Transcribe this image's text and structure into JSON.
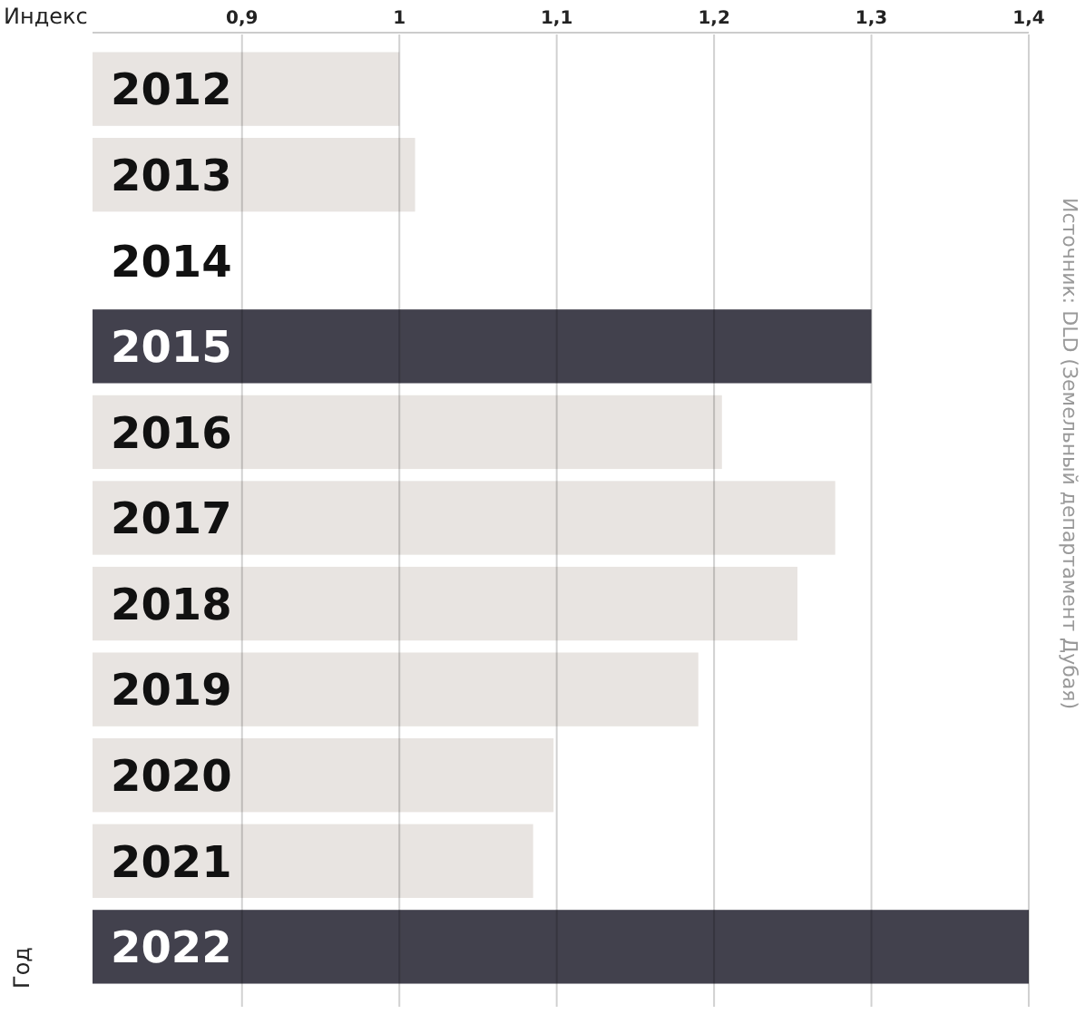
{
  "chart_data": {
    "type": "bar",
    "orientation": "horizontal",
    "xlabel": "Индекс",
    "ylabel": "Год",
    "categories": [
      "2012",
      "2013",
      "2014",
      "2015",
      "2016",
      "2017",
      "2018",
      "2019",
      "2020",
      "2021",
      "2022"
    ],
    "values": [
      1.0,
      1.01,
      null,
      1.3,
      1.205,
      1.277,
      1.253,
      1.19,
      1.098,
      1.085,
      1.4
    ],
    "colors": [
      "#e8e4e1",
      "#e8e4e1",
      "#e8e4e1",
      "#42414d",
      "#e8e4e1",
      "#e8e4e1",
      "#e8e4e1",
      "#e8e4e1",
      "#e8e4e1",
      "#e8e4e1",
      "#42414d"
    ],
    "xlim": [
      0.805,
      1.4
    ],
    "xticks": [
      {
        "value": 0.9,
        "label": "0,9"
      },
      1,
      {
        "value": 1.1,
        "label": "1,1"
      },
      {
        "value": 1.2,
        "label": "1,2"
      },
      {
        "value": 1.3,
        "label": "1,3"
      },
      {
        "value": 1.4,
        "label": "1,4"
      }
    ],
    "grid": "x",
    "annotations": [
      "Источник: DLD (Земельный департамент Дубая)"
    ]
  }
}
